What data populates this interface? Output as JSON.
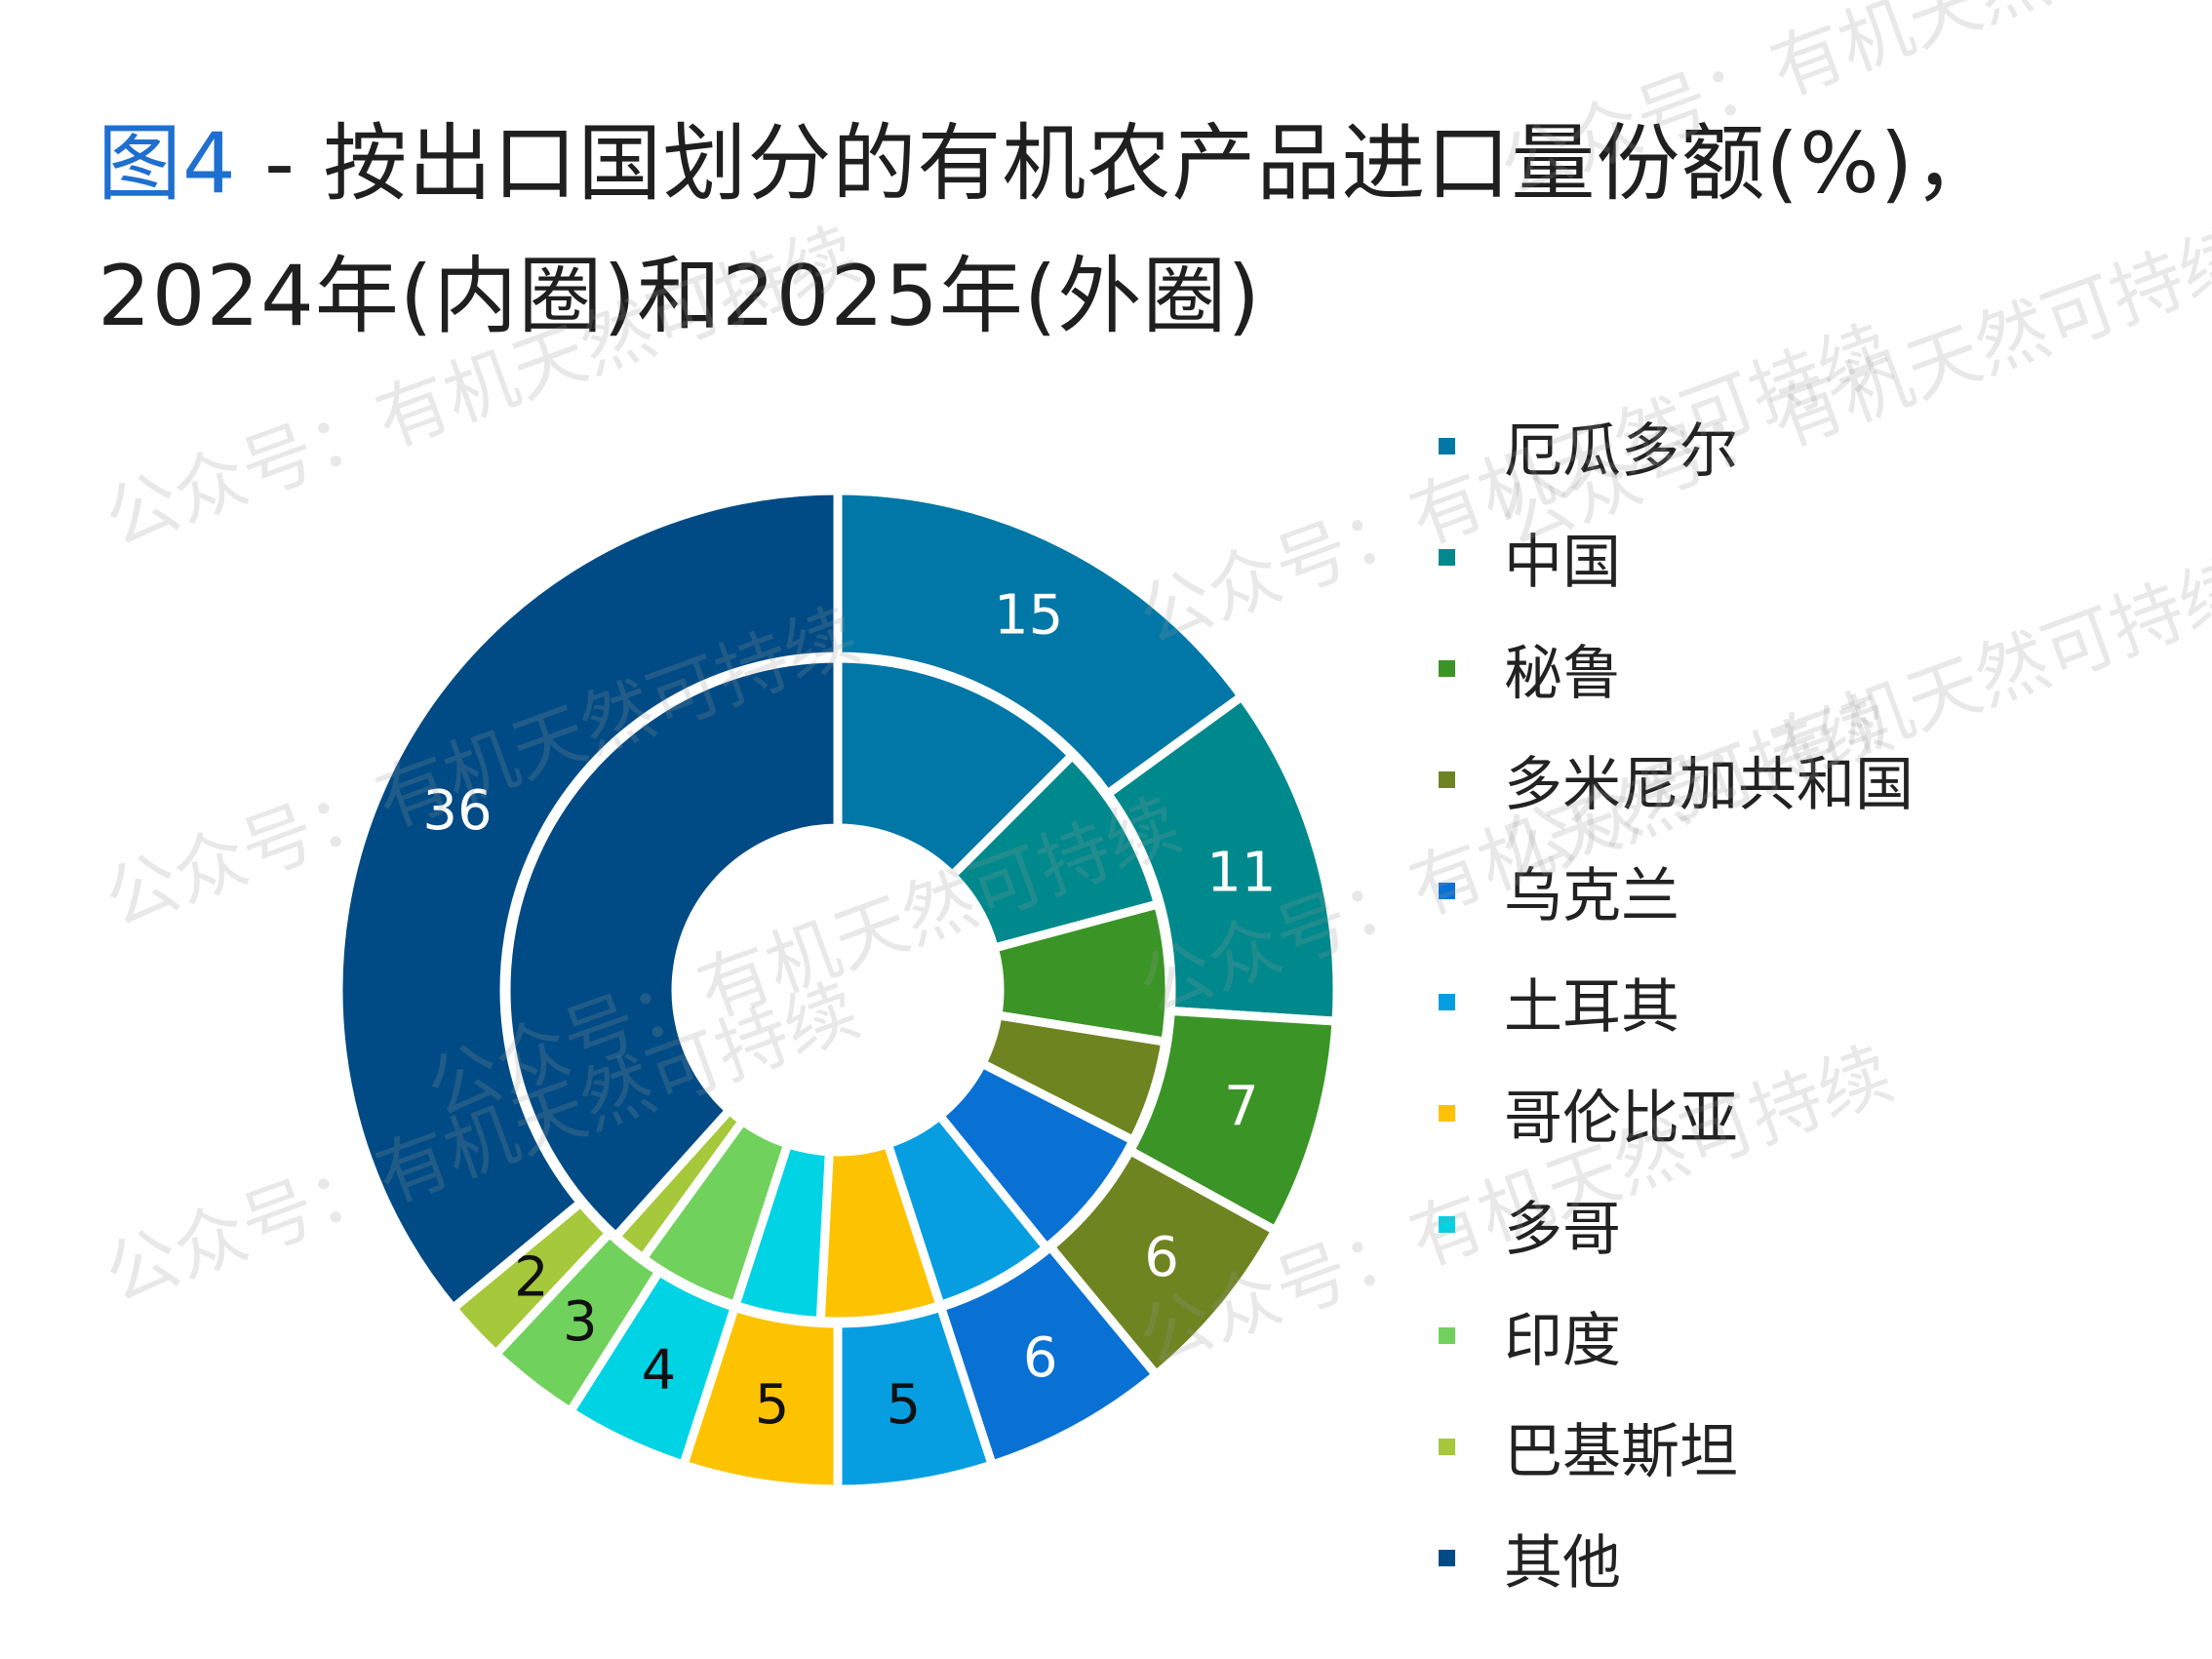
{
  "title": {
    "figure_label": "图4",
    "text_line1": " - 按出口国划分的有机农产品进口量份额(%)，",
    "text_line2": "2024年(内圈)和2025年(外圈)"
  },
  "watermark": "公众号：有机天然可持续",
  "chart_data": {
    "type": "donut",
    "unit": "%",
    "inner_label": "2024年",
    "outer_label": "2025年",
    "categories": [
      "厄瓜多尔",
      "中国",
      "秘鲁",
      "多米尼加共和国",
      "乌克兰",
      "土耳其",
      "哥伦比亚",
      "多哥",
      "印度",
      "巴基斯坦",
      "其他"
    ],
    "colors": [
      "#0077a6",
      "#00898c",
      "#3a9526",
      "#6e8421",
      "#0a71d4",
      "#069ee0",
      "#fdc300",
      "#00d3e4",
      "#71d15d",
      "#a6c83b",
      "#004b85"
    ],
    "series": [
      {
        "name": "2024年",
        "ring": "inner",
        "values": [
          15,
          10,
          8,
          6,
          8,
          7,
          7,
          5,
          6,
          2,
          46
        ]
      },
      {
        "name": "2025年",
        "ring": "outer",
        "values": [
          15,
          11,
          7,
          6,
          6,
          5,
          5,
          4,
          3,
          2,
          36
        ]
      }
    ],
    "outer_data_labels": [
      "15",
      "11",
      "7",
      "6",
      "6",
      "5",
      "5",
      "4",
      "3",
      "2",
      "36"
    ],
    "legend_position": "right"
  }
}
